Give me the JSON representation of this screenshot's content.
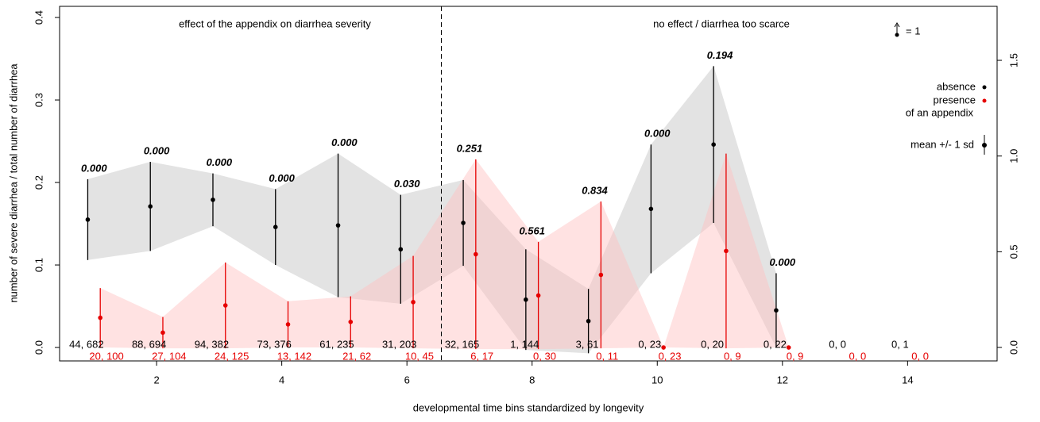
{
  "chart_data": {
    "type": "errorbar",
    "ylabel": "number of severe diarrhea / total number of diarrhea",
    "xlabel": "developmental time bins standardized by longevity",
    "x": [
      1,
      2,
      3,
      4,
      5,
      6,
      7,
      8,
      9,
      10,
      11,
      12,
      13,
      14
    ],
    "series": [
      {
        "name": "absence",
        "color": "#000000",
        "band_color": "#e3e3e3",
        "values": [
          0.155,
          0.171,
          0.179,
          0.146,
          0.148,
          0.119,
          0.151,
          0.058,
          0.032,
          0.168,
          0.246,
          0.045,
          null,
          null
        ],
        "sd": [
          0.049,
          0.054,
          0.032,
          0.046,
          0.087,
          0.066,
          0.052,
          0.061,
          0.039,
          0.078,
          0.095,
          0.045,
          null,
          null
        ],
        "counts": [
          "44, 682",
          "88, 694",
          "94, 382",
          "73, 376",
          "61, 235",
          "31, 203",
          "32, 165",
          "1, 144",
          "3, 61",
          "0, 23",
          "0, 20",
          "0, 22",
          "0, 0",
          "0, 1"
        ]
      },
      {
        "name": "presence",
        "color": "#e60000",
        "band_color": "rgba(255,190,190,0.45)",
        "values": [
          0.036,
          0.018,
          0.051,
          0.028,
          0.031,
          0.055,
          0.113,
          0.063,
          0.088,
          0,
          0.117,
          0,
          null,
          null
        ],
        "sd": [
          0.036,
          0.019,
          0.052,
          0.028,
          0.031,
          0.056,
          0.115,
          0.065,
          0.089,
          0,
          0.118,
          0,
          null,
          null
        ],
        "counts": [
          "20, 100",
          "27, 104",
          "24, 125",
          "13, 142",
          "21, 62",
          "10, 45",
          "6, 17",
          "0, 30",
          "0, 11",
          "0, 23",
          "0, 9",
          "0, 9",
          "0, 0",
          "0, 0"
        ]
      }
    ],
    "p_values": [
      "0.000",
      "0.000",
      "0.000",
      "0.000",
      "0.000",
      "0.030",
      "0.251",
      "0.561",
      "0.834",
      "0.000",
      "0.194",
      "0.000",
      null,
      null
    ],
    "annotations": [
      "effect of the appendix on diarrhea severity",
      "no effect / diarrhea too scarce"
    ],
    "vline": 6.55,
    "legend_suffix": "of an appendix",
    "legend_sd": "mean +/- 1 sd",
    "scale_key": "= 1",
    "xlim": [
      0.45,
      15.43
    ],
    "xticks": [
      2,
      4,
      6,
      8,
      10,
      12,
      14
    ],
    "ylim": [
      -0.0163,
      0.4135
    ],
    "yticks": [
      {
        "value": 0,
        "label": "0.0"
      },
      0.1,
      0.2,
      0.3,
      0.4
    ],
    "y2lim": [
      -0.0704,
      1.782
    ],
    "y2ticks": [
      {
        "value": 0,
        "label": "0.0"
      },
      0.5,
      {
        "value": 1,
        "label": "1.0"
      },
      1.5
    ]
  }
}
